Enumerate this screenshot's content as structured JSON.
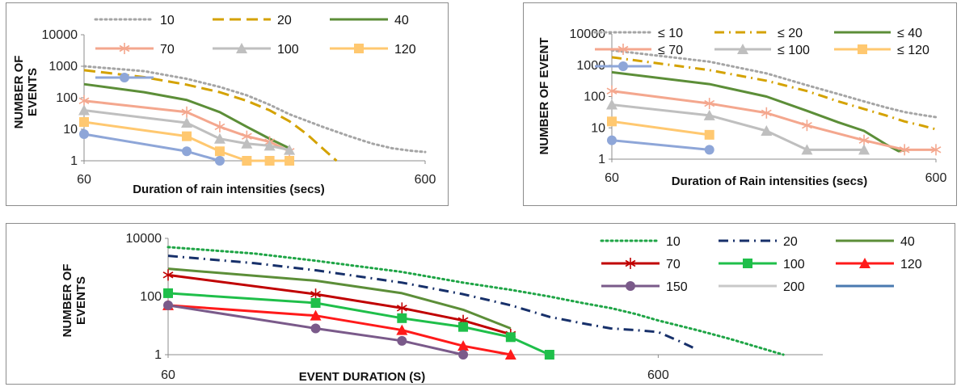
{
  "chart_data": [
    {
      "type": "line",
      "id": "a",
      "title": "",
      "xlabel": "Duration of rain intensities (secs)",
      "ylabel": "NUMBER OF EVENTS",
      "x_scale": "log",
      "y_scale": "log",
      "x_ticks": [
        "60",
        "600"
      ],
      "y_ticks": [
        "1",
        "10",
        "100",
        "1000",
        "10000"
      ],
      "xlim": [
        60,
        600
      ],
      "ylim": [
        1,
        10000
      ],
      "legend": "top",
      "series": [
        {
          "name": "10",
          "color": "#a5a5a5",
          "style": "dotted",
          "marker": "none",
          "x": [
            60,
            90,
            120,
            150,
            180,
            210,
            240,
            300,
            360,
            420,
            480,
            540,
            600
          ],
          "y": [
            1000,
            700,
            400,
            220,
            120,
            60,
            30,
            12,
            6,
            3.5,
            2.5,
            2.1,
            1.9
          ]
        },
        {
          "name": "20",
          "color": "#d4a200",
          "style": "dashed",
          "marker": "none",
          "x": [
            60,
            90,
            120,
            150,
            180,
            210,
            240,
            270,
            300,
            330
          ],
          "y": [
            750,
            450,
            260,
            150,
            80,
            40,
            18,
            7,
            2.5,
            1
          ]
        },
        {
          "name": "40",
          "color": "#5c8e38",
          "style": "solid",
          "marker": "none",
          "x": [
            60,
            90,
            120,
            150,
            180,
            210,
            240
          ],
          "y": [
            270,
            150,
            85,
            35,
            12,
            5,
            2.5
          ]
        },
        {
          "name": "70",
          "color": "#f4a78e",
          "style": "solid",
          "marker": "star",
          "x": [
            60,
            120,
            150,
            180,
            210,
            240
          ],
          "y": [
            80,
            35,
            12,
            6,
            4,
            2
          ]
        },
        {
          "name": "100",
          "color": "#bfbfbf",
          "style": "solid",
          "marker": "triangle",
          "x": [
            60,
            120,
            150,
            180,
            210,
            240
          ],
          "y": [
            40,
            16,
            5,
            3.5,
            3,
            2.2
          ]
        },
        {
          "name": "120",
          "color": "#ffc870",
          "style": "solid",
          "marker": "square",
          "x": [
            60,
            120,
            150,
            180,
            210,
            240
          ],
          "y": [
            17,
            6,
            2,
            1,
            1,
            1
          ]
        },
        {
          "name": "",
          "color": "#8ea6d8",
          "style": "solid",
          "marker": "circle",
          "x": [
            60,
            120,
            150
          ],
          "y": [
            7,
            2,
            1
          ]
        }
      ]
    },
    {
      "type": "line",
      "id": "b",
      "title": "",
      "xlabel": "Duration of Rain intensities (secs)",
      "ylabel": "NUMBER OF EVENT",
      "x_scale": "log",
      "y_scale": "log",
      "x_ticks": [
        "60",
        "600"
      ],
      "y_ticks": [
        "1",
        "10",
        "100",
        "1000",
        "10000"
      ],
      "xlim": [
        60,
        600
      ],
      "ylim": [
        1,
        10000
      ],
      "legend": "top",
      "series": [
        {
          "name": "≤ 10",
          "color": "#a5a5a5",
          "style": "dotted",
          "marker": "none",
          "x": [
            60,
            120,
            180,
            240,
            300,
            360,
            420,
            480,
            540,
            600
          ],
          "y": [
            3000,
            1300,
            550,
            230,
            120,
            70,
            45,
            32,
            26,
            22
          ]
        },
        {
          "name": "≤ 20",
          "color": "#d4a200",
          "style": "dashdot",
          "marker": "none",
          "x": [
            60,
            120,
            180,
            240,
            300,
            360,
            420,
            480,
            540,
            600
          ],
          "y": [
            1800,
            700,
            320,
            150,
            70,
            40,
            25,
            16,
            12,
            9
          ]
        },
        {
          "name": "≤ 40",
          "color": "#5c8e38",
          "style": "solid",
          "marker": "none",
          "x": [
            60,
            120,
            180,
            240,
            300,
            360,
            420,
            460,
            490
          ],
          "y": [
            600,
            250,
            100,
            35,
            15,
            8,
            3,
            1.8,
            2
          ]
        },
        {
          "name": "≤ 70",
          "color": "#f4a78e",
          "style": "solid",
          "marker": "star",
          "x": [
            60,
            120,
            180,
            240,
            360,
            480,
            600
          ],
          "y": [
            150,
            60,
            30,
            12,
            4,
            2,
            2
          ]
        },
        {
          "name": "≤ 100",
          "color": "#bfbfbf",
          "style": "solid",
          "marker": "triangle",
          "x": [
            60,
            120,
            180,
            240,
            360
          ],
          "y": [
            55,
            25,
            8,
            2,
            2
          ]
        },
        {
          "name": "≤ 120",
          "color": "#ffc870",
          "style": "solid",
          "marker": "square",
          "x": [
            60,
            120
          ],
          "y": [
            16,
            6
          ]
        },
        {
          "name": "",
          "color": "#8ea6d8",
          "style": "solid",
          "marker": "circle",
          "x": [
            60,
            120
          ],
          "y": [
            4,
            2
          ]
        }
      ]
    },
    {
      "type": "line",
      "id": "c",
      "title": "",
      "xlabel": "EVENT DURATION (S)",
      "ylabel": "NUMBER OF EVENTS",
      "x_scale": "log",
      "y_scale": "log",
      "x_ticks": [
        "60",
        "600"
      ],
      "y_ticks": [
        "1",
        "100",
        "10000"
      ],
      "xlim": [
        60,
        1300
      ],
      "ylim": [
        1,
        10000
      ],
      "legend": "right",
      "series": [
        {
          "name": "10",
          "color": "#1fa546",
          "style": "dotted",
          "marker": "none",
          "x": [
            60,
            90,
            120,
            180,
            240,
            300,
            360,
            420,
            480,
            540,
            600,
            720,
            840,
            960,
            1080
          ],
          "y": [
            5000,
            3000,
            1700,
            700,
            300,
            170,
            100,
            60,
            40,
            25,
            15,
            7,
            3.5,
            1.8,
            1
          ]
        },
        {
          "name": "20",
          "color": "#17306a",
          "style": "dashdot",
          "marker": "none",
          "x": [
            60,
            90,
            120,
            180,
            240,
            300,
            360,
            420,
            480,
            540,
            600,
            660,
            720
          ],
          "y": [
            2500,
            1400,
            800,
            300,
            120,
            50,
            20,
            12,
            8,
            7,
            6,
            3,
            1.5
          ]
        },
        {
          "name": "40",
          "color": "#5c8e38",
          "style": "solid",
          "marker": "none",
          "x": [
            60,
            120,
            180,
            240,
            300
          ],
          "y": [
            900,
            350,
            130,
            35,
            8
          ]
        },
        {
          "name": "70",
          "color": "#c00000",
          "style": "solid",
          "marker": "star",
          "x": [
            60,
            120,
            180,
            240,
            300
          ],
          "y": [
            550,
            120,
            40,
            15,
            5
          ]
        },
        {
          "name": "100",
          "color": "#1fbf4a",
          "style": "solid",
          "marker": "square",
          "x": [
            60,
            120,
            180,
            240,
            300,
            360
          ],
          "y": [
            130,
            60,
            18,
            9,
            4,
            1
          ]
        },
        {
          "name": "120",
          "color": "#ff1a1a",
          "style": "solid",
          "marker": "triangle",
          "x": [
            60,
            120,
            180,
            240,
            300
          ],
          "y": [
            50,
            22,
            7,
            2,
            1
          ]
        },
        {
          "name": "150",
          "color": "#7a5a8a",
          "style": "solid",
          "marker": "circle",
          "x": [
            60,
            120,
            180,
            240
          ],
          "y": [
            50,
            8,
            3,
            1
          ]
        },
        {
          "name": "200",
          "color": "#c8c8c8",
          "style": "solid",
          "marker": "none",
          "x": [],
          "y": []
        },
        {
          "name": "",
          "color": "#4a7ab0",
          "style": "solid",
          "marker": "none",
          "x": [],
          "y": []
        }
      ]
    }
  ]
}
